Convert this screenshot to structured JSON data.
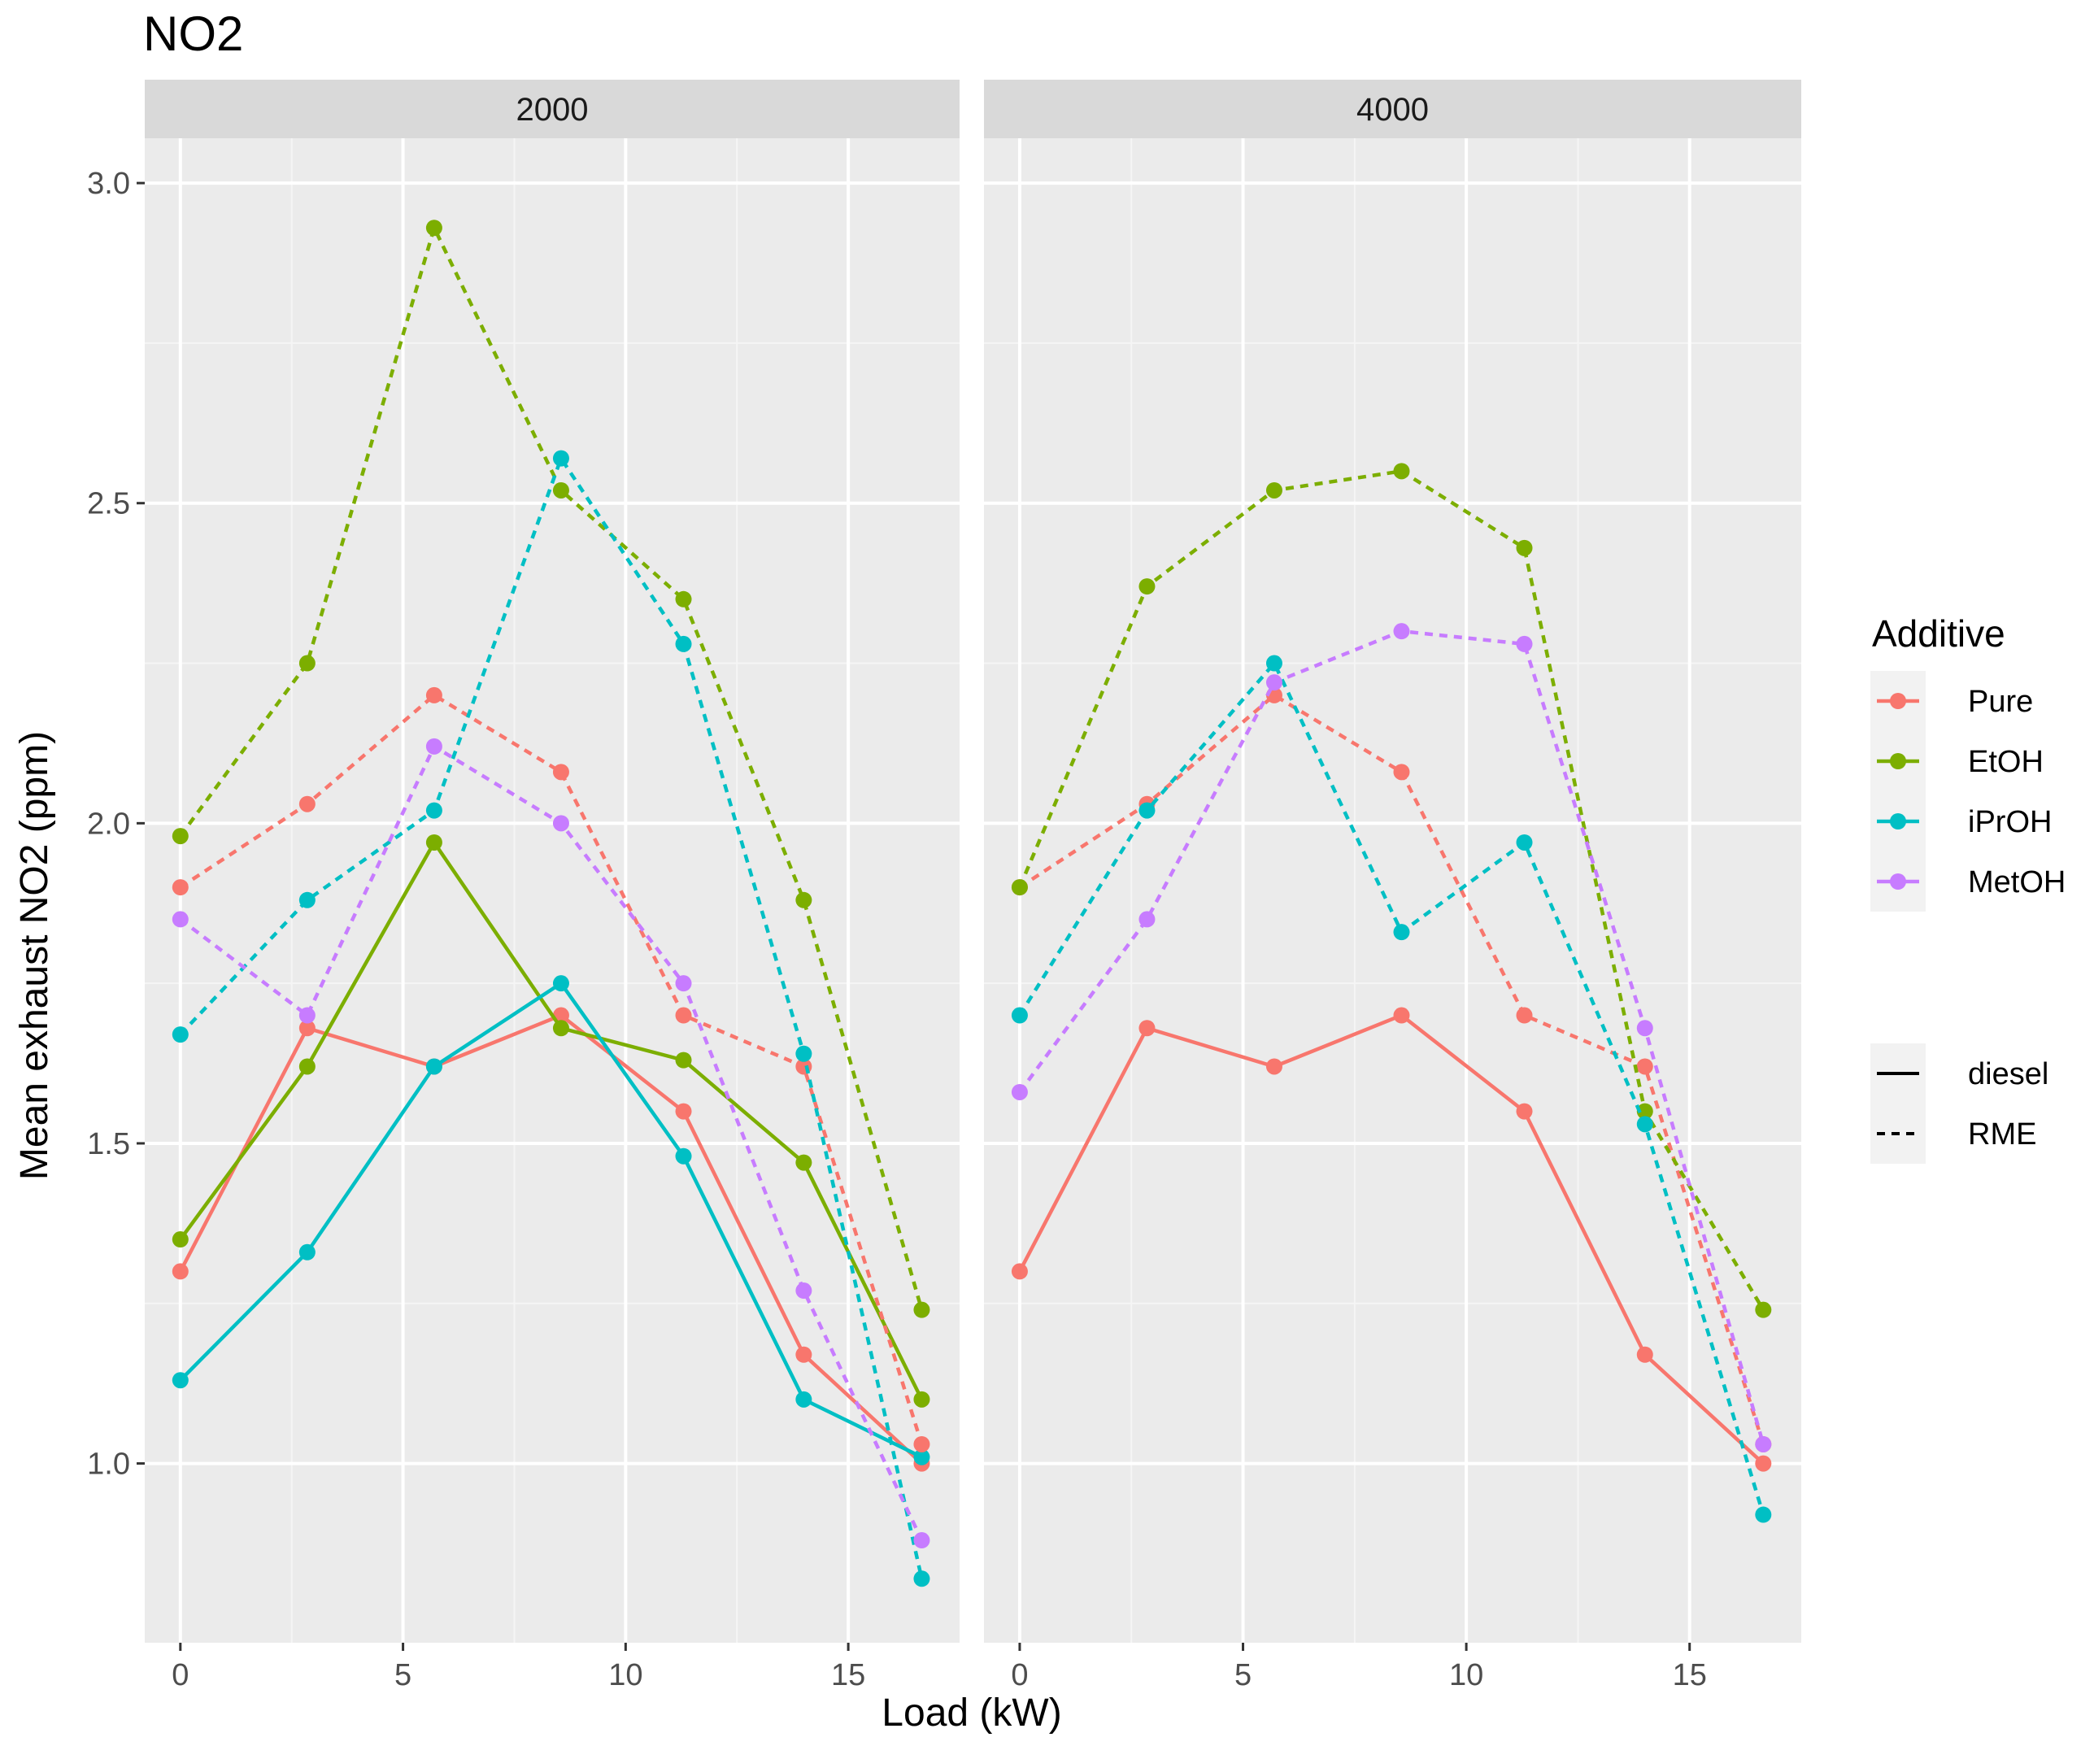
{
  "chart_data": {
    "type": "line",
    "title": "NO2",
    "xlabel": "Load (kW)",
    "ylabel": "Mean exhaust NO2 (ppm)",
    "xlim": [
      -0.8,
      17.5
    ],
    "ylim": [
      0.72,
      3.07
    ],
    "x_ticks": [
      0,
      5,
      10,
      15
    ],
    "y_ticks": [
      1.0,
      1.5,
      2.0,
      2.5,
      3.0
    ],
    "x_tick_labels": [
      "0",
      "5",
      "10",
      "15"
    ],
    "y_tick_labels": [
      "1.0",
      "1.5",
      "2.0",
      "2.5",
      "3.0"
    ],
    "x": [
      0,
      2.85,
      5.7,
      8.55,
      11.3,
      14.0,
      16.65
    ],
    "grid": true,
    "legend": {
      "title": "Additive",
      "additives": [
        {
          "name": "Pure",
          "color": "#F8766D"
        },
        {
          "name": "EtOH",
          "color": "#7CAE00"
        },
        {
          "name": "iPrOH",
          "color": "#00BFC4"
        },
        {
          "name": "MetOH",
          "color": "#C77CFF"
        }
      ],
      "fuels": [
        {
          "name": "diesel",
          "linetype": "solid"
        },
        {
          "name": "RME",
          "linetype": "dashed"
        }
      ],
      "placement": "right"
    },
    "panels": [
      {
        "label": "2000",
        "series": [
          {
            "additive": "Pure",
            "fuel": "diesel",
            "values": [
              1.3,
              1.68,
              1.62,
              1.7,
              1.55,
              1.17,
              1.0
            ]
          },
          {
            "additive": "EtOH",
            "fuel": "diesel",
            "values": [
              1.35,
              1.62,
              1.97,
              1.68,
              1.63,
              1.47,
              1.1
            ]
          },
          {
            "additive": "iPrOH",
            "fuel": "diesel",
            "values": [
              1.13,
              1.33,
              1.62,
              1.75,
              1.48,
              1.1,
              1.01
            ]
          },
          {
            "additive": "Pure",
            "fuel": "RME",
            "values": [
              1.9,
              2.03,
              2.2,
              2.08,
              1.7,
              1.62,
              1.03
            ]
          },
          {
            "additive": "EtOH",
            "fuel": "RME",
            "values": [
              1.98,
              2.25,
              2.93,
              2.52,
              2.35,
              1.88,
              1.24
            ]
          },
          {
            "additive": "iPrOH",
            "fuel": "RME",
            "values": [
              1.67,
              1.88,
              2.02,
              2.57,
              2.28,
              1.64,
              0.82
            ]
          },
          {
            "additive": "MetOH",
            "fuel": "RME",
            "values": [
              1.85,
              1.7,
              2.12,
              2.0,
              1.75,
              1.27,
              0.88
            ]
          }
        ]
      },
      {
        "label": "4000",
        "series": [
          {
            "additive": "Pure",
            "fuel": "diesel",
            "values": [
              1.3,
              1.68,
              1.62,
              1.7,
              1.55,
              1.17,
              1.0
            ]
          },
          {
            "additive": "Pure",
            "fuel": "RME",
            "values": [
              1.9,
              2.03,
              2.2,
              2.08,
              1.7,
              1.62,
              1.03
            ]
          },
          {
            "additive": "EtOH",
            "fuel": "RME",
            "values": [
              1.9,
              2.37,
              2.52,
              2.55,
              2.43,
              1.55,
              1.24
            ]
          },
          {
            "additive": "iPrOH",
            "fuel": "RME",
            "values": [
              1.7,
              2.02,
              2.25,
              1.83,
              1.97,
              1.53,
              0.92
            ]
          },
          {
            "additive": "MetOH",
            "fuel": "RME",
            "values": [
              1.58,
              1.85,
              2.22,
              2.3,
              2.28,
              1.68,
              1.03
            ]
          }
        ]
      }
    ]
  }
}
